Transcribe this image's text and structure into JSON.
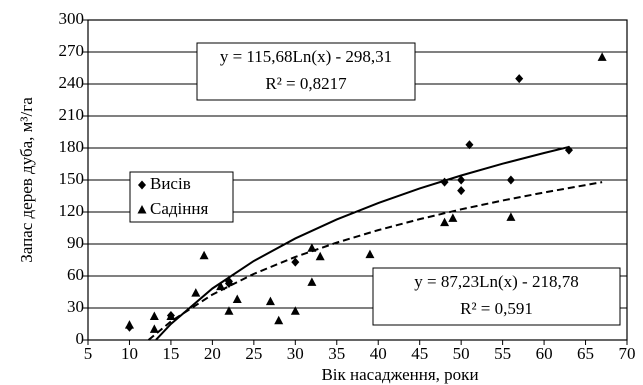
{
  "chart_data": {
    "type": "scatter",
    "xlabel": "Вік насадження, роки",
    "ylabel": "Запас дерев дуба, м³/га",
    "xlim": [
      5,
      70
    ],
    "xticks": [
      5,
      10,
      15,
      20,
      25,
      30,
      35,
      40,
      45,
      50,
      55,
      60,
      65,
      70
    ],
    "ylim": [
      0,
      300
    ],
    "yticks": [
      0,
      30,
      60,
      90,
      120,
      150,
      180,
      210,
      240,
      270,
      300
    ],
    "grid": true,
    "series": [
      {
        "name": "Висів",
        "marker": "diamond",
        "color": "#000000",
        "x": [
          10,
          15,
          22,
          22,
          30,
          48,
          50,
          50,
          51,
          56,
          57,
          63
        ],
        "values": [
          12,
          23,
          53,
          55,
          73,
          148,
          150,
          140,
          183,
          150,
          245,
          178
        ]
      },
      {
        "name": "Садіння",
        "marker": "triangle",
        "color": "#000000",
        "x": [
          10,
          13,
          13,
          15,
          18,
          19,
          21,
          22,
          23,
          27,
          28,
          30,
          32,
          32,
          33,
          39,
          48,
          49,
          56,
          67
        ],
        "values": [
          14,
          10,
          22,
          22,
          44,
          79,
          50,
          27,
          38,
          36,
          18,
          27,
          54,
          86,
          78,
          80,
          110,
          114,
          115,
          265
        ]
      }
    ],
    "trendlines": [
      {
        "style": "solid",
        "x": [
          13.2,
          15,
          20,
          25,
          30,
          35,
          40,
          45,
          50,
          55,
          60,
          63
        ],
        "values": [
          0.2,
          15.0,
          48.3,
          74.1,
          95.2,
          113.0,
          128.4,
          142.1,
          154.2,
          165.3,
          175.3,
          181.0
        ]
      },
      {
        "style": "dashed",
        "x": [
          12.3,
          15,
          20,
          25,
          30,
          35,
          40,
          45,
          50,
          55,
          60,
          67
        ],
        "values": [
          0,
          17.4,
          42.6,
          62.0,
          77.9,
          91.3,
          103.0,
          113.3,
          122.5,
          130.8,
          138.3,
          148.0
        ]
      }
    ],
    "annotations": [
      {
        "lines": [
          "y = 115,68Ln(x) - 298,31",
          "R² = 0,8217"
        ]
      },
      {
        "lines": [
          "y = 87,23Ln(x) - 218,78",
          "R² = 0,591"
        ]
      }
    ]
  }
}
